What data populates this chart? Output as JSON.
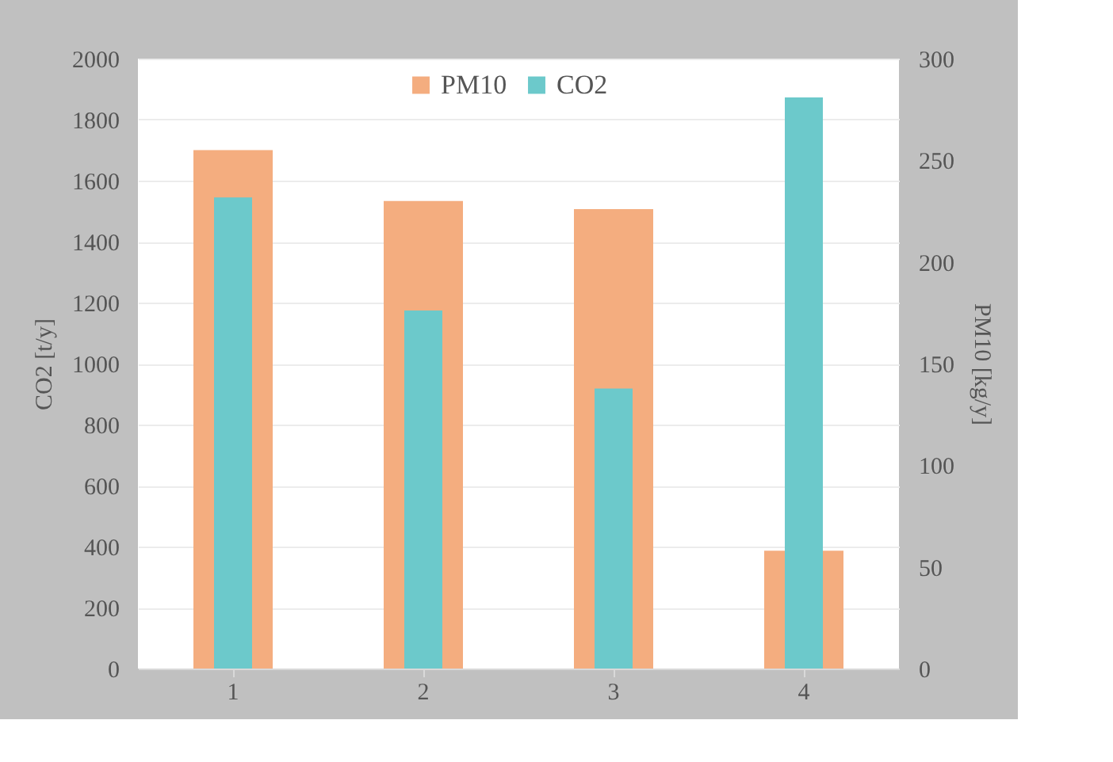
{
  "chart_data": {
    "type": "bar",
    "categories": [
      "1",
      "2",
      "3",
      "4"
    ],
    "ylabel": "CO2 [t/y]",
    "y2label": "PM10 [kg/y]",
    "ylim": [
      0,
      2000
    ],
    "yticks": [
      0,
      200,
      400,
      600,
      800,
      1000,
      1200,
      1400,
      1600,
      1800,
      2000
    ],
    "y2lim": [
      0,
      300
    ],
    "y2ticks": [
      0,
      50,
      100,
      150,
      200,
      250,
      300
    ],
    "grid": "y",
    "legend": "top",
    "series": [
      {
        "name": "PM10",
        "color": "#f4ad7f",
        "axis": "y2",
        "values": [
          255,
          230,
          226,
          58
        ]
      },
      {
        "name": "CO2",
        "color": "#6cc9cb",
        "axis": "y",
        "values": [
          1545,
          1174,
          918,
          1873
        ]
      }
    ]
  }
}
